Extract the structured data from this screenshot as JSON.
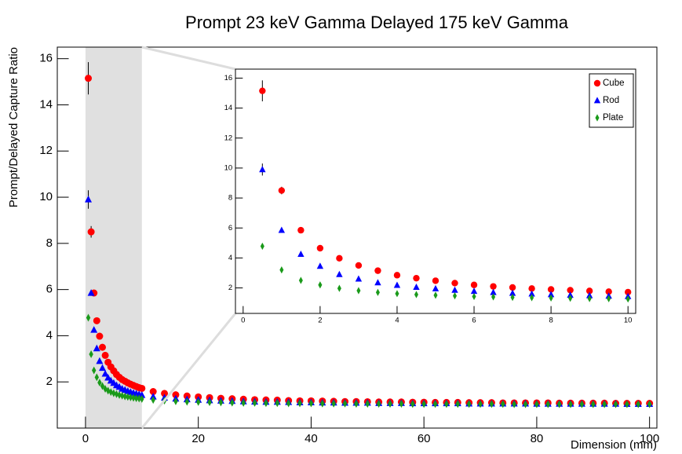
{
  "chart_data": {
    "type": "scatter",
    "title": "Prompt 23 keV Gamma Delayed 175 keV Gamma",
    "x_label": "Dimension (mm)",
    "y_label": "Prompt/Delayed Capture Ratio",
    "xlim": [
      -5,
      101.3
    ],
    "ylim": [
      0,
      16.5
    ],
    "xticks": [
      0,
      20,
      40,
      60,
      80,
      100
    ],
    "yticks": [
      2,
      4,
      6,
      8,
      10,
      12,
      14,
      16
    ],
    "highlight": [
      0,
      10
    ],
    "legend": "top-right",
    "x": [
      0.5,
      1,
      1.5,
      2,
      2.5,
      3,
      3.5,
      4,
      4.5,
      5,
      5.5,
      6,
      6.5,
      7,
      7.5,
      8,
      8.5,
      9,
      9.5,
      10,
      12,
      14,
      16,
      18,
      20,
      22,
      24,
      26,
      28,
      30,
      32,
      34,
      36,
      38,
      40,
      42,
      44,
      46,
      48,
      50,
      52,
      54,
      56,
      58,
      60,
      62,
      64,
      66,
      68,
      70,
      72,
      74,
      76,
      78,
      80,
      82,
      84,
      86,
      88,
      90,
      92,
      94,
      96,
      98,
      100
    ],
    "series": [
      {
        "name": "Cube",
        "color": "#ff0000",
        "marker": "circle",
        "values": [
          15.15,
          8.5,
          5.85,
          4.65,
          3.98,
          3.5,
          3.15,
          2.85,
          2.65,
          2.48,
          2.32,
          2.2,
          2.1,
          2.03,
          1.96,
          1.9,
          1.85,
          1.8,
          1.75,
          1.72,
          1.58,
          1.5,
          1.44,
          1.39,
          1.35,
          1.32,
          1.29,
          1.27,
          1.25,
          1.23,
          1.22,
          1.21,
          1.19,
          1.18,
          1.18,
          1.17,
          1.16,
          1.15,
          1.15,
          1.14,
          1.13,
          1.13,
          1.13,
          1.12,
          1.12,
          1.11,
          1.11,
          1.11,
          1.1,
          1.1,
          1.1,
          1.09,
          1.09,
          1.09,
          1.09,
          1.09,
          1.08,
          1.08,
          1.08,
          1.08,
          1.08,
          1.07,
          1.07,
          1.07,
          1.07
        ],
        "errors": [
          0.7,
          0.25,
          0.12,
          0.08,
          0.06,
          0.05,
          0.04,
          0.04,
          0.03,
          0.03,
          0.03,
          0.03,
          0.03,
          0.03,
          0.03,
          0.03,
          0.03,
          0.03,
          0.03,
          0.03,
          0.02,
          0.02,
          0.02,
          0.02,
          0.02,
          0.02,
          0.02,
          0.02,
          0.02,
          0.02,
          0.02,
          0.02,
          0.02,
          0.02,
          0.02,
          0.02,
          0.02,
          0.02,
          0.02,
          0.02,
          0.02,
          0.02,
          0.02,
          0.02,
          0.02,
          0.02,
          0.02,
          0.02,
          0.02,
          0.02,
          0.02,
          0.02,
          0.02,
          0.02,
          0.02,
          0.02,
          0.02,
          0.02,
          0.02,
          0.02,
          0.02,
          0.02,
          0.02,
          0.02,
          0.02
        ]
      },
      {
        "name": "Rod",
        "color": "#0000ff",
        "marker": "triangle",
        "values": [
          9.9,
          5.85,
          4.25,
          3.45,
          2.9,
          2.6,
          2.35,
          2.18,
          2.05,
          1.95,
          1.85,
          1.78,
          1.7,
          1.65,
          1.6,
          1.56,
          1.52,
          1.49,
          1.46,
          1.43,
          1.36,
          1.31,
          1.27,
          1.24,
          1.22,
          1.2,
          1.18,
          1.17,
          1.15,
          1.14,
          1.13,
          1.13,
          1.12,
          1.11,
          1.11,
          1.1,
          1.1,
          1.09,
          1.09,
          1.09,
          1.08,
          1.08,
          1.08,
          1.07,
          1.07,
          1.07,
          1.07,
          1.07,
          1.06,
          1.06,
          1.06,
          1.06,
          1.06,
          1.06,
          1.05,
          1.05,
          1.05,
          1.05,
          1.05,
          1.05,
          1.05,
          1.05,
          1.04,
          1.04,
          1.04
        ],
        "errors": [
          0.4,
          0.12,
          0.07,
          0.05,
          0.04,
          0.04,
          0.03,
          0.03,
          0.03,
          0.03,
          0.03,
          0.03,
          0.03,
          0.03,
          0.03,
          0.03,
          0.03,
          0.03,
          0.03,
          0.03,
          0.02,
          0.02,
          0.02,
          0.02,
          0.02,
          0.02,
          0.02,
          0.02,
          0.02,
          0.02,
          0.02,
          0.02,
          0.02,
          0.02,
          0.02,
          0.02,
          0.02,
          0.02,
          0.02,
          0.02,
          0.02,
          0.02,
          0.02,
          0.02,
          0.02,
          0.02,
          0.02,
          0.02,
          0.02,
          0.02,
          0.02,
          0.02,
          0.02,
          0.02,
          0.02,
          0.02,
          0.02,
          0.02,
          0.02,
          0.02,
          0.02,
          0.02,
          0.02,
          0.02,
          0.02
        ]
      },
      {
        "name": "Plate",
        "color": "#1a9a1a",
        "marker": "diamond",
        "values": [
          4.78,
          3.2,
          2.5,
          2.2,
          1.97,
          1.82,
          1.7,
          1.62,
          1.56,
          1.51,
          1.47,
          1.43,
          1.4,
          1.37,
          1.35,
          1.33,
          1.31,
          1.29,
          1.28,
          1.26,
          1.22,
          1.19,
          1.16,
          1.14,
          1.13,
          1.12,
          1.11,
          1.1,
          1.09,
          1.09,
          1.08,
          1.08,
          1.07,
          1.07,
          1.07,
          1.06,
          1.06,
          1.06,
          1.05,
          1.05,
          1.05,
          1.05,
          1.05,
          1.04,
          1.04,
          1.04,
          1.04,
          1.04,
          1.04,
          1.04,
          1.04,
          1.04,
          1.03,
          1.03,
          1.03,
          1.03,
          1.03,
          1.03,
          1.03,
          1.03,
          1.03,
          1.03,
          1.03,
          1.03,
          1.03
        ],
        "errors": [
          0.12,
          0.06,
          0.04,
          0.03,
          0.03,
          0.03,
          0.03,
          0.03,
          0.02,
          0.02,
          0.02,
          0.02,
          0.02,
          0.02,
          0.02,
          0.02,
          0.02,
          0.02,
          0.02,
          0.02,
          0.02,
          0.02,
          0.02,
          0.02,
          0.02,
          0.02,
          0.02,
          0.02,
          0.02,
          0.02,
          0.02,
          0.02,
          0.02,
          0.02,
          0.02,
          0.02,
          0.02,
          0.02,
          0.02,
          0.02,
          0.02,
          0.02,
          0.02,
          0.02,
          0.02,
          0.02,
          0.02,
          0.02,
          0.02,
          0.02,
          0.02,
          0.02,
          0.02,
          0.02,
          0.02,
          0.02,
          0.02,
          0.02,
          0.02,
          0.02,
          0.02,
          0.02,
          0.02,
          0.02,
          0.02
        ]
      }
    ],
    "inset": {
      "xlim": [
        -0.2,
        10.2
      ],
      "ylim": [
        0.3,
        16.6
      ],
      "xticks": [
        0,
        2,
        4,
        6,
        8,
        10
      ],
      "yticks": [
        2,
        4,
        6,
        8,
        10,
        12,
        14,
        16
      ]
    }
  }
}
